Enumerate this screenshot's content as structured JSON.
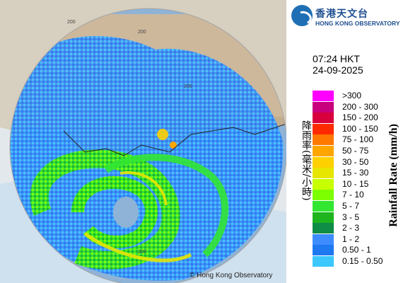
{
  "header": {
    "org_name_zh": "香港天文台",
    "org_name_en": "HONG KONG OBSERVATORY"
  },
  "timestamp": {
    "time": "07:24 HKT",
    "date": "24-09-2025"
  },
  "legend": {
    "title_zh": "降雨率(毫米/小時)",
    "title_en": "Rainfall Rate (mm/h)",
    "ranges": [
      {
        "label": ">300",
        "color": "#ff00ff"
      },
      {
        "label": "200 - 300",
        "color": "#c8007d"
      },
      {
        "label": "150 - 200",
        "color": "#d8003c"
      },
      {
        "label": "100 - 150",
        "color": "#ff2a00"
      },
      {
        "label": "75 - 100",
        "color": "#ff7800"
      },
      {
        "label": "50 - 75",
        "color": "#ffa500"
      },
      {
        "label": "30 - 50",
        "color": "#ffd000"
      },
      {
        "label": "15 - 30",
        "color": "#e6e600"
      },
      {
        "label": "10 - 15",
        "color": "#c8ff00"
      },
      {
        "label": "7 - 10",
        "color": "#7dff00"
      },
      {
        "label": "5 - 7",
        "color": "#32e632"
      },
      {
        "label": "3 - 5",
        "color": "#1eb41e"
      },
      {
        "label": "2 - 3",
        "color": "#0f8c46"
      },
      {
        "label": "1 - 2",
        "color": "#3c8cff"
      },
      {
        "label": "0.50 - 1",
        "color": "#1e78f0"
      },
      {
        "label": "0.15 - 0.50",
        "color": "#3cc8ff"
      }
    ]
  },
  "map": {
    "range_ring_label": "200",
    "copyright": "© Hong Kong Observatory",
    "land_color": "#cdb89c",
    "sea_color": "#8fb3d6"
  }
}
